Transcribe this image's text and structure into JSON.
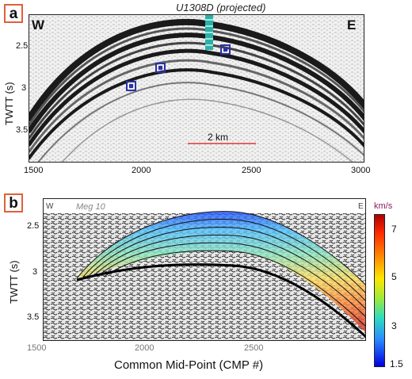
{
  "panel_a": {
    "label": "a",
    "well_label": "U1308D (projected)",
    "west_label": "W",
    "east_label": "E",
    "y_axis_label": "TWTT (s)",
    "y_ticks": [
      "2.5",
      "3",
      "3.5"
    ],
    "x_ticks": [
      "1500",
      "2000",
      "2500",
      "3000"
    ],
    "scale_bar_label": "2 km"
  },
  "panel_b": {
    "label": "b",
    "west_label": "W",
    "east_label": "E",
    "line_label": "Meg 10",
    "y_axis_label": "TWTT (s)",
    "y_ticks": [
      "2.5",
      "3",
      "3.5"
    ],
    "x_ticks": [
      "1500",
      "2000",
      "2500"
    ],
    "x_axis_label": "Common Mid-Point (CMP #)"
  },
  "colorbar": {
    "unit": "km/s",
    "ticks": [
      "7",
      "5",
      "3",
      "1.5"
    ]
  },
  "colors": {
    "accent": "#e0603a",
    "marker": "#2a32a8",
    "scale_bar": "#e56060"
  }
}
